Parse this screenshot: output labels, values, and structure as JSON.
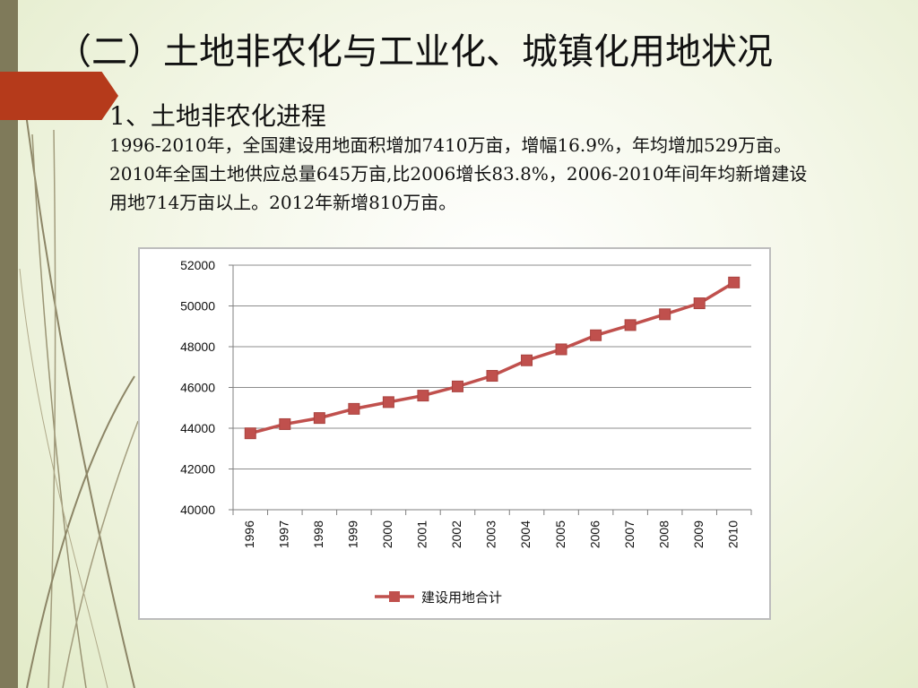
{
  "slide": {
    "title": "（二）土地非农化与工业化、城镇化用地状况",
    "subtitle": "1、土地非农化进程",
    "paragraph": "1996-2010年，全国建设用地面积增加7410万亩，增幅16.9%，年均增加529万亩。2010年全国土地供应总量645万亩,比2006增长83.8%，2006-2010年间年均新增建设用地714万亩以上。2012年新增810万亩。"
  },
  "colors": {
    "series": "#c0504d",
    "left_bar": "#7f7a5a",
    "accent_tab": "#b53a1b"
  },
  "chart_data": {
    "type": "line",
    "categories": [
      "1996",
      "1997",
      "1998",
      "1999",
      "2000",
      "2001",
      "2002",
      "2003",
      "2004",
      "2005",
      "2006",
      "2007",
      "2008",
      "2009",
      "2010"
    ],
    "series": [
      {
        "name": "建设用地合计",
        "values": [
          43750,
          44200,
          44500,
          44950,
          45280,
          45600,
          46050,
          46570,
          47330,
          47870,
          48560,
          49060,
          49590,
          50130,
          51150
        ]
      }
    ],
    "title": "",
    "xlabel": "",
    "ylabel": "",
    "ylim": [
      40000,
      52000
    ],
    "yticks": [
      40000,
      42000,
      44000,
      46000,
      48000,
      50000,
      52000
    ],
    "grid": true,
    "legend": "bottom",
    "marker": "square"
  }
}
